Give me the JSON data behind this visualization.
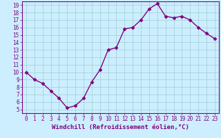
{
  "x": [
    0,
    1,
    2,
    3,
    4,
    5,
    6,
    7,
    8,
    9,
    10,
    11,
    12,
    13,
    14,
    15,
    16,
    17,
    18,
    19,
    20,
    21,
    22,
    23
  ],
  "y": [
    10.0,
    9.0,
    8.5,
    7.5,
    6.5,
    5.2,
    5.5,
    6.5,
    8.7,
    10.3,
    13.0,
    13.3,
    15.8,
    16.0,
    17.0,
    18.5,
    19.2,
    17.5,
    17.3,
    17.5,
    17.0,
    16.0,
    15.2,
    14.5
  ],
  "line_color": "#800080",
  "marker": "D",
  "marker_size": 2.5,
  "bg_color": "#cceeff",
  "grid_color": "#9ecfcf",
  "xlabel": "Windchill (Refroidissement éolien,°C)",
  "xlim": [
    -0.5,
    23.5
  ],
  "ylim": [
    4.5,
    19.5
  ],
  "yticks": [
    5,
    6,
    7,
    8,
    9,
    10,
    11,
    12,
    13,
    14,
    15,
    16,
    17,
    18,
    19
  ],
  "xticks": [
    0,
    1,
    2,
    3,
    4,
    5,
    6,
    7,
    8,
    9,
    10,
    11,
    12,
    13,
    14,
    15,
    16,
    17,
    18,
    19,
    20,
    21,
    22,
    23
  ],
  "xlabel_fontsize": 6.5,
  "tick_fontsize": 5.5,
  "line_width": 1.0
}
